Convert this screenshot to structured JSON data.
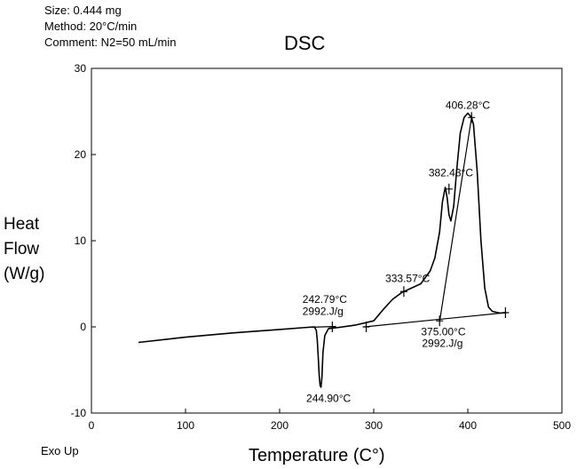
{
  "header": {
    "size": "Size: 0.444 mg",
    "method": "Method: 20°C/min",
    "comment": "Comment: N2=50 mL/min"
  },
  "footer": {
    "exo": "Exo Up"
  },
  "chart_data": {
    "type": "line",
    "title": "DSC",
    "xlabel": "Temperature (C°)",
    "ylabel_lines": [
      "Heat",
      "Flow",
      "(W/g)"
    ],
    "xlim": [
      0,
      500
    ],
    "ylim": [
      -10,
      30
    ],
    "xticks": [
      0,
      100,
      200,
      300,
      400,
      500
    ],
    "yticks": [
      -10,
      0,
      10,
      20,
      30
    ],
    "grid": false,
    "series": [
      {
        "x": [
          50,
          100,
          150,
          200,
          230,
          237,
          239,
          240,
          241,
          242,
          243,
          244,
          245,
          246,
          248,
          252,
          260,
          280,
          300,
          310,
          320,
          330,
          340,
          350,
          360,
          365,
          370,
          373,
          376,
          378,
          380,
          382,
          385,
          388,
          392,
          396,
          400,
          404,
          406,
          410,
          414,
          418,
          422,
          426,
          430,
          435,
          440
        ],
        "y": [
          -1.8,
          -1.2,
          -0.7,
          -0.3,
          -0.05,
          0.0,
          -0.4,
          -1.5,
          -3.5,
          -5.5,
          -6.8,
          -7.0,
          -5.8,
          -3.0,
          -1.0,
          -0.2,
          -0.1,
          0.2,
          0.7,
          2.0,
          3.2,
          4.0,
          4.5,
          5.0,
          6.5,
          8.0,
          11.0,
          14.5,
          16.2,
          15.0,
          13.0,
          12.3,
          14.0,
          18.0,
          22.5,
          24.3,
          24.8,
          24.3,
          23.5,
          18.0,
          10.0,
          4.5,
          2.3,
          1.8,
          1.7,
          1.6,
          1.65
        ]
      }
    ],
    "baselines": [
      {
        "x": [
          230,
          260
        ],
        "y": [
          -0.05,
          0.05
        ]
      },
      {
        "x": [
          290,
          440
        ],
        "y": [
          0.0,
          1.65
        ]
      },
      {
        "x": [
          370,
          404
        ],
        "y": [
          0.6,
          24.3
        ]
      }
    ],
    "markers": [
      {
        "x": 256,
        "y": 0.0
      },
      {
        "x": 292,
        "y": 0.0
      },
      {
        "x": 332,
        "y": 4.1
      },
      {
        "x": 370,
        "y": 0.7
      },
      {
        "x": 380,
        "y": 16.0
      },
      {
        "x": 404,
        "y": 24.3
      },
      {
        "x": 440,
        "y": 1.65
      }
    ],
    "annotations": [
      {
        "text": "242.79°C",
        "x": 248,
        "y": 2.8
      },
      {
        "text": "2992.J/g",
        "x": 246,
        "y": 1.4
      },
      {
        "text": "244.90°C",
        "x": 252,
        "y": -8.7
      },
      {
        "text": "333.57°C",
        "x": 336,
        "y": 5.2
      },
      {
        "text": "375.00°C",
        "x": 374,
        "y": -1.0
      },
      {
        "text": "2992.J/g",
        "x": 373,
        "y": -2.3
      },
      {
        "text": "382.43°C",
        "x": 382,
        "y": 17.5
      },
      {
        "text": "406.28°C",
        "x": 400,
        "y": 25.3
      }
    ]
  }
}
